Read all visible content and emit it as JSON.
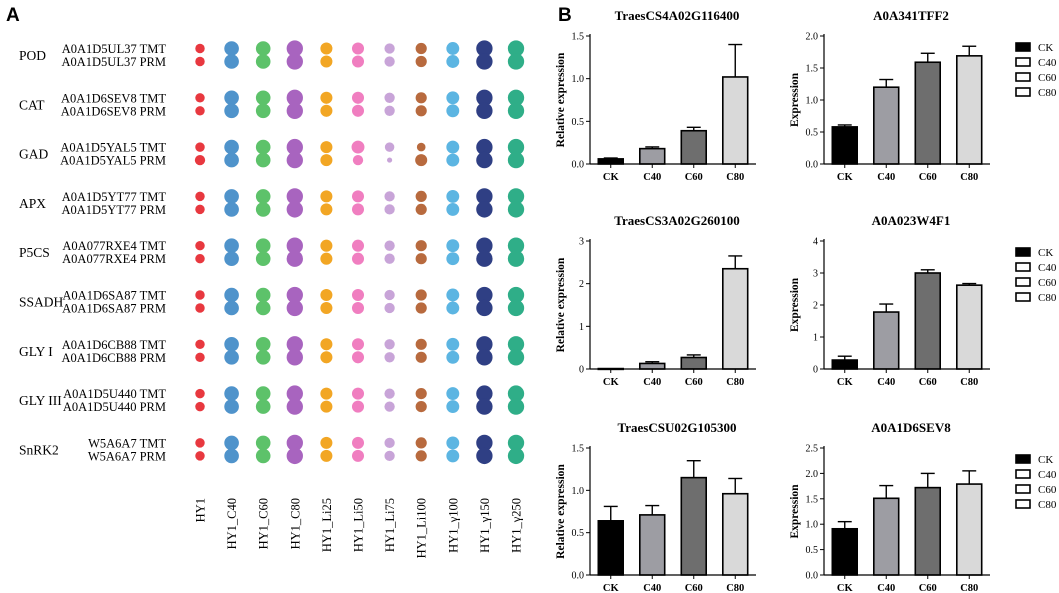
{
  "panel_labels": {
    "a": "A",
    "b": "B"
  },
  "dotplot": {
    "columns": [
      "HY1",
      "HY1_C40",
      "HY1_C60",
      "HY1_C80",
      "HY1_Li25",
      "HY1_Li50",
      "HY1_Li75",
      "HY1_Li100",
      "HY1_γ100",
      "HY1_γ150",
      "HY1_γ250"
    ],
    "column_colors": [
      "#e8383f",
      "#4f93cb",
      "#5dc26a",
      "#a864bf",
      "#f2a624",
      "#f07ec0",
      "#c8a4d8",
      "#b86a3e",
      "#5cb5e2",
      "#2f3f84",
      "#2fae88"
    ],
    "groups": [
      {
        "gene": "POD",
        "rows": [
          {
            "label": "A0A1D5UL37 TMT",
            "sizes": [
              0.55,
              0.85,
              0.85,
              0.95,
              0.7,
              0.7,
              0.6,
              0.65,
              0.75,
              0.95,
              0.95
            ]
          },
          {
            "label": "A0A1D5UL37 PRM",
            "sizes": [
              0.55,
              0.85,
              0.85,
              0.95,
              0.7,
              0.7,
              0.6,
              0.65,
              0.75,
              0.95,
              0.95
            ]
          }
        ]
      },
      {
        "gene": "CAT",
        "rows": [
          {
            "label": "A0A1D6SEV8 TMT",
            "sizes": [
              0.55,
              0.85,
              0.85,
              0.95,
              0.7,
              0.7,
              0.6,
              0.65,
              0.75,
              0.95,
              0.95
            ]
          },
          {
            "label": "A0A1D6SEV8 PRM",
            "sizes": [
              0.55,
              0.85,
              0.85,
              0.95,
              0.7,
              0.7,
              0.6,
              0.65,
              0.75,
              0.95,
              0.95
            ]
          }
        ]
      },
      {
        "gene": "GAD",
        "rows": [
          {
            "label": "A0A1D5YAL5 TMT",
            "sizes": [
              0.55,
              0.85,
              0.85,
              0.95,
              0.7,
              0.75,
              0.55,
              0.5,
              0.75,
              0.95,
              0.95
            ]
          },
          {
            "label": "A0A1D5YAL5 PRM",
            "sizes": [
              0.6,
              0.85,
              0.85,
              0.95,
              0.7,
              0.6,
              0.3,
              0.7,
              0.75,
              0.95,
              0.95
            ]
          }
        ]
      },
      {
        "gene": "APX",
        "rows": [
          {
            "label": "A0A1D5YT77 TMT",
            "sizes": [
              0.55,
              0.85,
              0.85,
              0.95,
              0.7,
              0.7,
              0.6,
              0.65,
              0.75,
              0.95,
              0.95
            ]
          },
          {
            "label": "A0A1D5YT77 PRM",
            "sizes": [
              0.55,
              0.85,
              0.85,
              0.95,
              0.7,
              0.7,
              0.6,
              0.65,
              0.75,
              0.95,
              0.95
            ]
          }
        ]
      },
      {
        "gene": "P5CS",
        "rows": [
          {
            "label": "A0A077RXE4 TMT",
            "sizes": [
              0.55,
              0.85,
              0.85,
              0.95,
              0.7,
              0.7,
              0.6,
              0.65,
              0.75,
              0.95,
              0.95
            ]
          },
          {
            "label": "A0A077RXE4 PRM",
            "sizes": [
              0.55,
              0.85,
              0.85,
              0.95,
              0.7,
              0.7,
              0.6,
              0.65,
              0.75,
              0.95,
              0.95
            ]
          }
        ]
      },
      {
        "gene": "SSADH",
        "rows": [
          {
            "label": "A0A1D6SA87 TMT",
            "sizes": [
              0.55,
              0.85,
              0.85,
              0.95,
              0.7,
              0.7,
              0.6,
              0.65,
              0.75,
              0.95,
              0.95
            ]
          },
          {
            "label": "A0A1D6SA87 PRM",
            "sizes": [
              0.55,
              0.85,
              0.85,
              0.95,
              0.7,
              0.7,
              0.6,
              0.65,
              0.75,
              0.95,
              0.95
            ]
          }
        ]
      },
      {
        "gene": "GLY I",
        "rows": [
          {
            "label": "A0A1D6CB88 TMT",
            "sizes": [
              0.55,
              0.85,
              0.85,
              0.95,
              0.7,
              0.7,
              0.6,
              0.65,
              0.75,
              0.95,
              0.95
            ]
          },
          {
            "label": "A0A1D6CB88 PRM",
            "sizes": [
              0.55,
              0.85,
              0.85,
              0.95,
              0.7,
              0.7,
              0.6,
              0.65,
              0.75,
              0.95,
              0.95
            ]
          }
        ]
      },
      {
        "gene": "GLY III",
        "rows": [
          {
            "label": "A0A1D5U440 TMT",
            "sizes": [
              0.55,
              0.85,
              0.85,
              0.95,
              0.7,
              0.7,
              0.6,
              0.65,
              0.75,
              0.95,
              0.95
            ]
          },
          {
            "label": "A0A1D5U440 PRM",
            "sizes": [
              0.55,
              0.85,
              0.85,
              0.95,
              0.7,
              0.7,
              0.6,
              0.65,
              0.75,
              0.95,
              0.95
            ]
          }
        ]
      },
      {
        "gene": "SnRK2",
        "rows": [
          {
            "label": "W5A6A7 TMT",
            "sizes": [
              0.55,
              0.85,
              0.85,
              0.95,
              0.7,
              0.7,
              0.6,
              0.65,
              0.75,
              0.95,
              0.95
            ]
          },
          {
            "label": "W5A6A7 PRM",
            "sizes": [
              0.55,
              0.85,
              0.85,
              0.95,
              0.7,
              0.7,
              0.6,
              0.65,
              0.75,
              0.95,
              0.95
            ]
          }
        ]
      }
    ]
  },
  "legend": {
    "entries": [
      "CK",
      "C40",
      "C60",
      "C80"
    ],
    "swatch_fills": [
      "#000000",
      "#ffffff",
      "#ffffff",
      "#ffffff"
    ]
  },
  "bar_colors": [
    "#000000",
    "#9d9da3",
    "#6e6e6e",
    "#d9d9d9"
  ],
  "chart_data": [
    {
      "type": "bar",
      "title": "TraesCS4A02G116400",
      "ylabel": "Relative expression",
      "categories": [
        "CK",
        "C40",
        "C60",
        "C80"
      ],
      "values": [
        0.06,
        0.18,
        0.39,
        1.02
      ],
      "errors": [
        0.01,
        0.02,
        0.04,
        0.38
      ],
      "ylim": [
        0,
        1.5
      ],
      "yticks": [
        "0.0",
        "0.5",
        "1.0",
        "1.5"
      ],
      "legend": false
    },
    {
      "type": "bar",
      "title": "A0A341TFF2",
      "ylabel": "Expression",
      "categories": [
        "CK",
        "C40",
        "C60",
        "C80"
      ],
      "values": [
        0.58,
        1.2,
        1.59,
        1.69
      ],
      "errors": [
        0.03,
        0.12,
        0.14,
        0.15
      ],
      "ylim": [
        0,
        2.0
      ],
      "yticks": [
        "0.0",
        "0.5",
        "1.0",
        "1.5",
        "2.0"
      ],
      "legend": true
    },
    {
      "type": "bar",
      "title": "TraesCS3A02G260100",
      "ylabel": "Relative expression",
      "categories": [
        "CK",
        "C40",
        "C60",
        "C80"
      ],
      "values": [
        0.01,
        0.13,
        0.27,
        2.35
      ],
      "errors": [
        0.0,
        0.04,
        0.06,
        0.3
      ],
      "ylim": [
        0,
        3
      ],
      "yticks": [
        "0",
        "1",
        "2",
        "3"
      ],
      "legend": false
    },
    {
      "type": "bar",
      "title": "A0A023W4F1",
      "ylabel": "Expression",
      "categories": [
        "CK",
        "C40",
        "C60",
        "C80"
      ],
      "values": [
        0.28,
        1.78,
        3.0,
        2.62
      ],
      "errors": [
        0.12,
        0.25,
        0.1,
        0.05
      ],
      "ylim": [
        0,
        4
      ],
      "yticks": [
        "0",
        "1",
        "2",
        "3",
        "4"
      ],
      "legend": true
    },
    {
      "type": "bar",
      "title": "TraesCSU02G105300",
      "ylabel": "Relative expression",
      "categories": [
        "CK",
        "C40",
        "C60",
        "C80"
      ],
      "values": [
        0.64,
        0.71,
        1.15,
        0.96
      ],
      "errors": [
        0.17,
        0.11,
        0.2,
        0.18
      ],
      "ylim": [
        0,
        1.5
      ],
      "yticks": [
        "0.0",
        "0.5",
        "1.0",
        "1.5"
      ],
      "legend": false
    },
    {
      "type": "bar",
      "title": "A0A1D6SEV8",
      "ylabel": "Expression",
      "categories": [
        "CK",
        "C40",
        "C60",
        "C80"
      ],
      "values": [
        0.91,
        1.51,
        1.72,
        1.79
      ],
      "errors": [
        0.14,
        0.25,
        0.28,
        0.26
      ],
      "ylim": [
        0,
        2.5
      ],
      "yticks": [
        "0.0",
        "0.5",
        "1.0",
        "1.5",
        "2.0",
        "2.5"
      ],
      "legend": true
    }
  ]
}
